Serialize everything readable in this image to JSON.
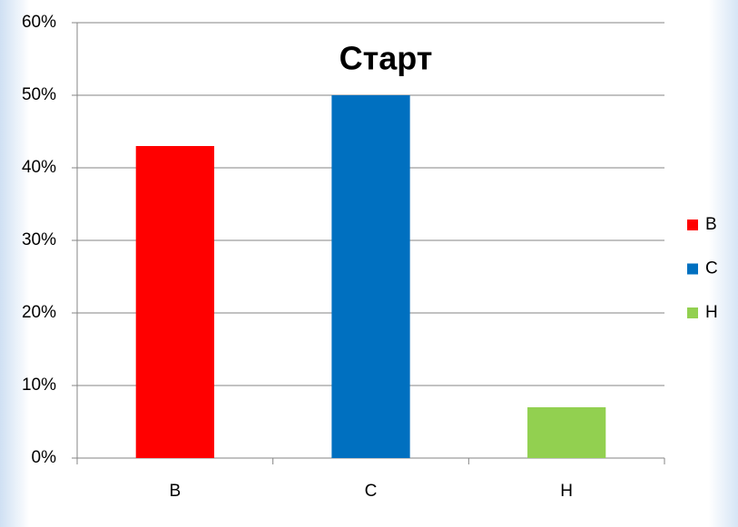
{
  "chart_data": {
    "type": "bar",
    "title": "Старт",
    "categories": [
      "В",
      "С",
      "Н"
    ],
    "values": [
      43,
      50,
      7
    ],
    "colors": [
      "#ff0000",
      "#0070c0",
      "#92d050"
    ],
    "ylim": [
      0,
      60
    ],
    "yticks": [
      {
        "value": 0,
        "label": "0%"
      },
      {
        "value": 10,
        "label": "10%"
      },
      {
        "value": 20,
        "label": "20%"
      },
      {
        "value": 30,
        "label": "30%"
      },
      {
        "value": 40,
        "label": "40%"
      },
      {
        "value": 50,
        "label": "50%"
      },
      {
        "value": 60,
        "label": "60%"
      }
    ],
    "grid": true,
    "legend": "right"
  }
}
